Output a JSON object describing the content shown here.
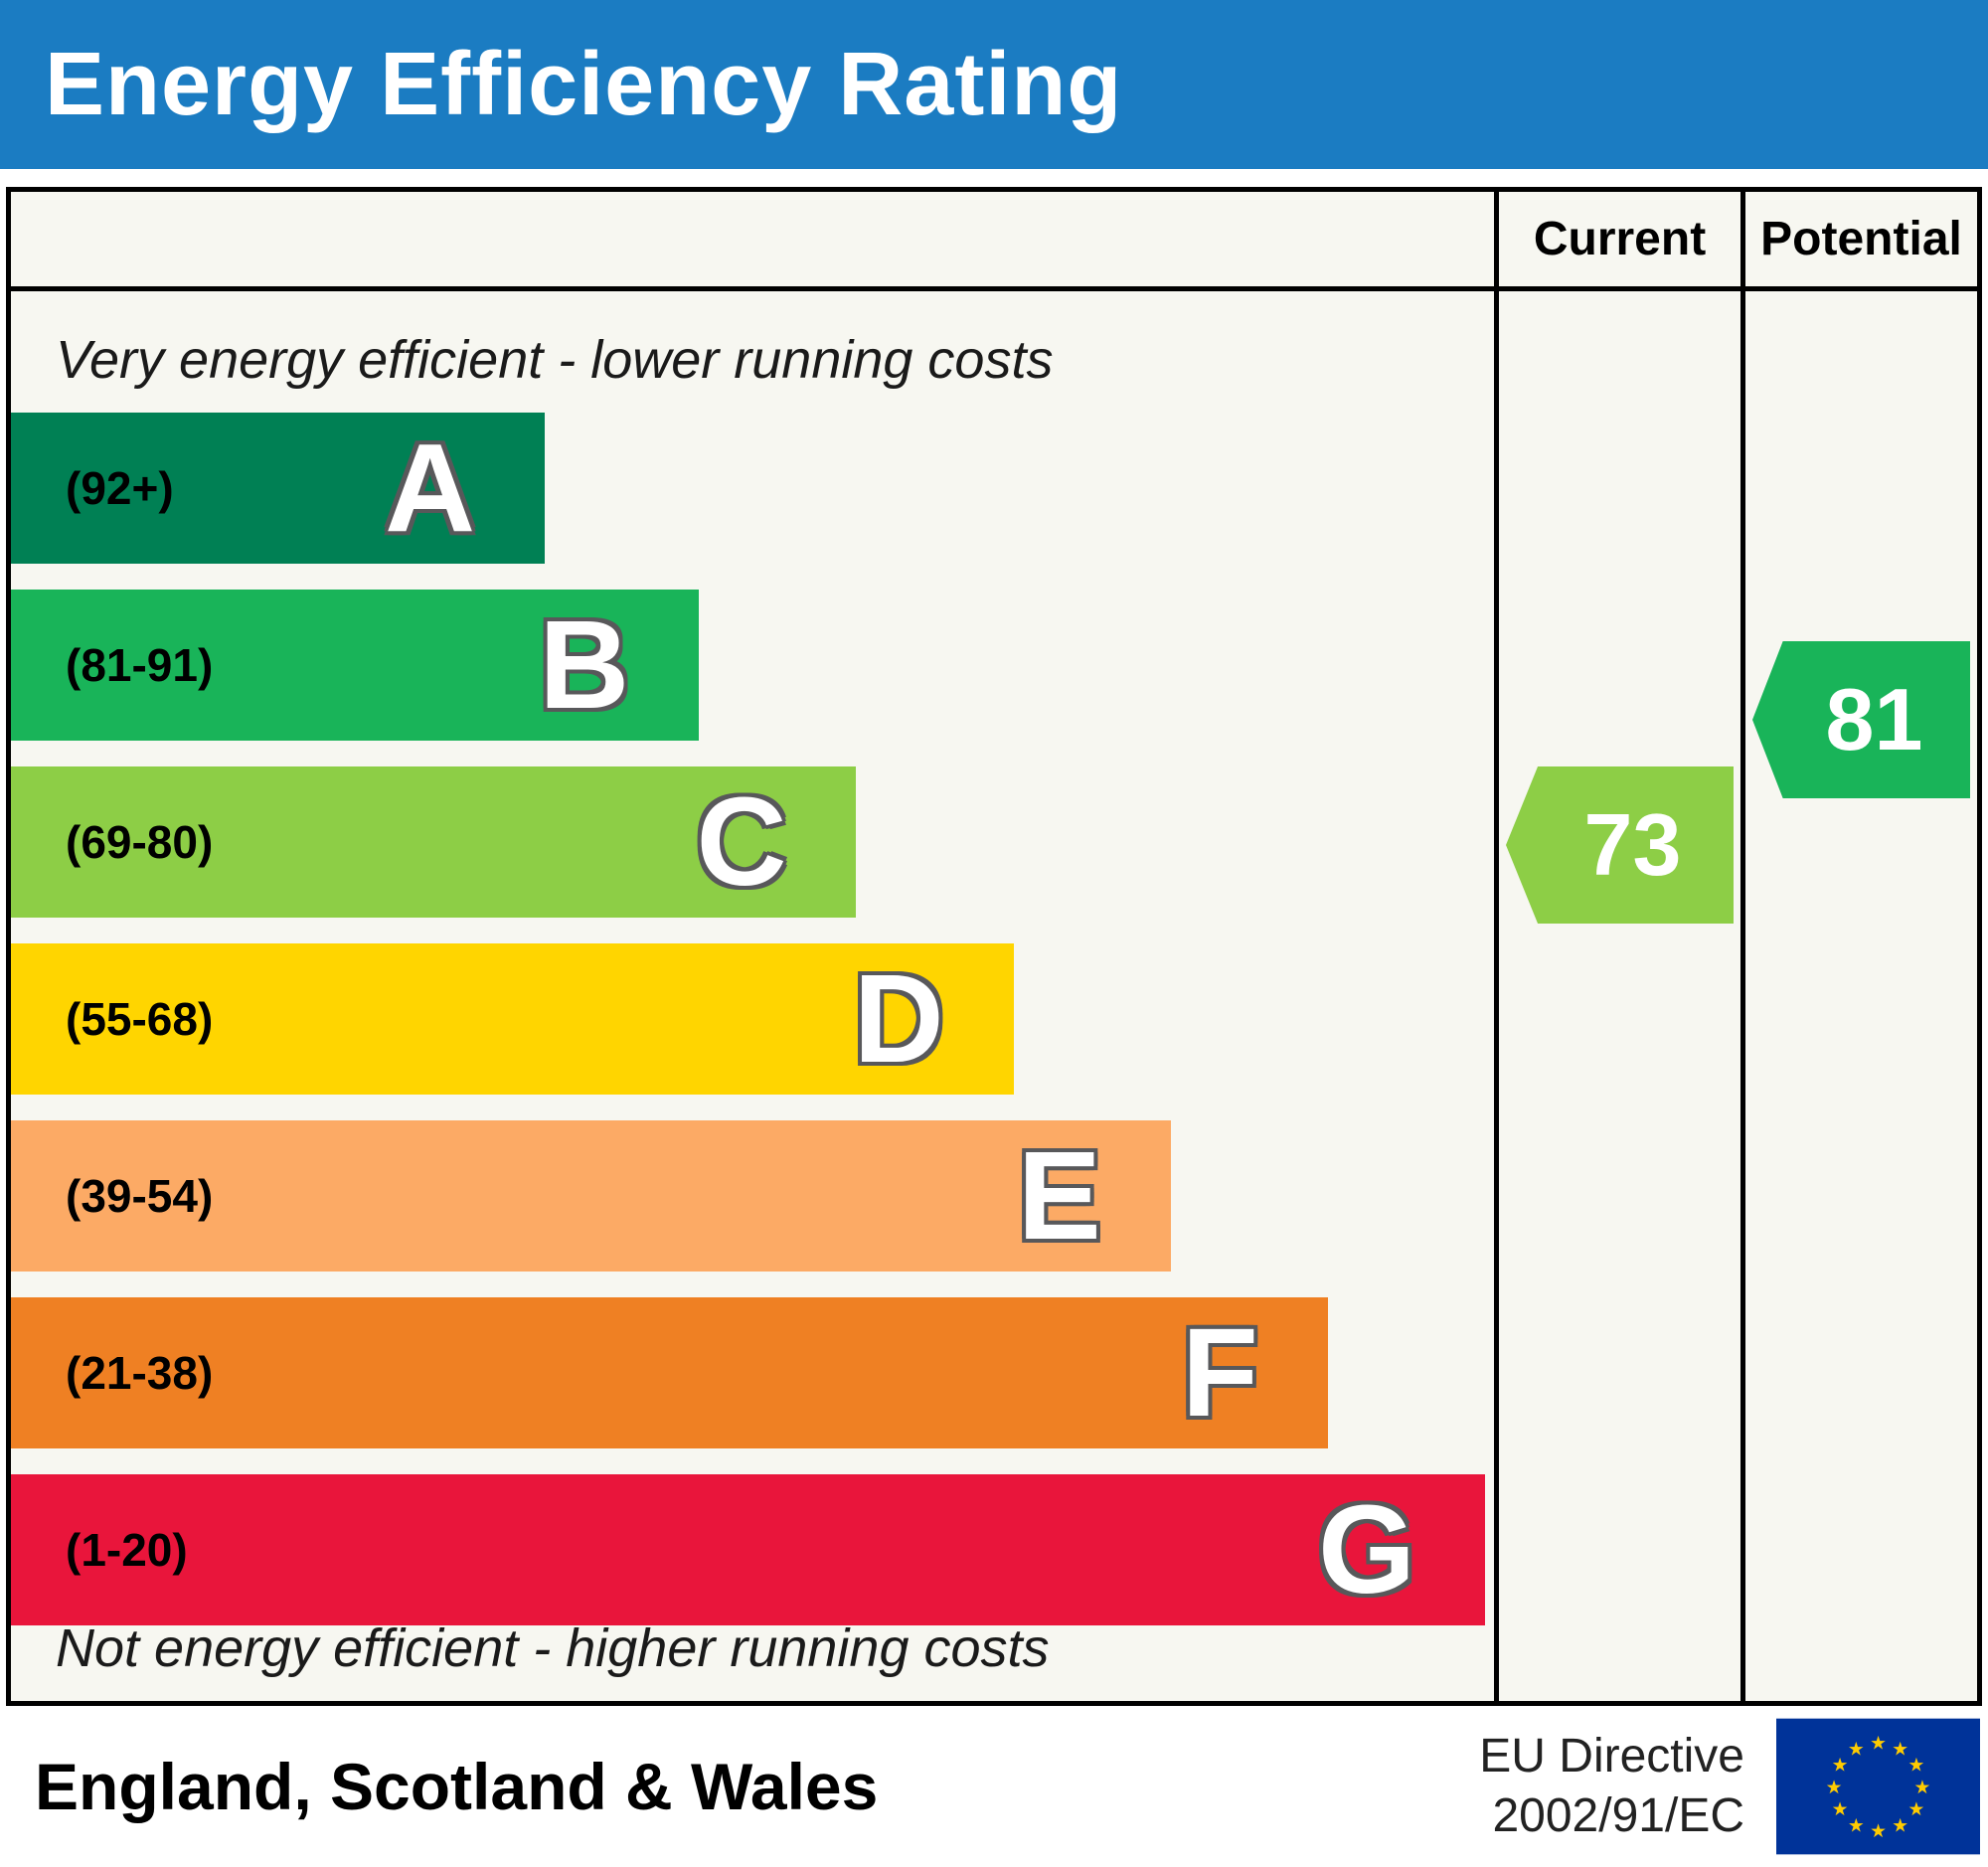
{
  "header": {
    "title": "Energy Efficiency Rating",
    "bar_color": "#1b7cc2"
  },
  "columns": {
    "current": "Current",
    "potential": "Potential"
  },
  "notes": {
    "top": "Very energy efficient - lower running costs",
    "bottom": "Not energy efficient - higher running costs"
  },
  "chart_data": {
    "type": "bar",
    "title": "Energy Efficiency Rating",
    "bands": [
      {
        "letter": "A",
        "range": "(92+)",
        "min": 92,
        "max": 100,
        "color": "#008054",
        "width_pct": 36.0
      },
      {
        "letter": "B",
        "range": "(81-91)",
        "min": 81,
        "max": 91,
        "color": "#19b459",
        "width_pct": 46.4
      },
      {
        "letter": "C",
        "range": "(69-80)",
        "min": 69,
        "max": 80,
        "color": "#8dce46",
        "width_pct": 57.0
      },
      {
        "letter": "D",
        "range": "(55-68)",
        "min": 55,
        "max": 68,
        "color": "#ffd500",
        "width_pct": 67.6
      },
      {
        "letter": "E",
        "range": "(39-54)",
        "min": 39,
        "max": 54,
        "color": "#fcaa65",
        "width_pct": 78.2
      },
      {
        "letter": "F",
        "range": "(21-38)",
        "min": 21,
        "max": 38,
        "color": "#ef8023",
        "width_pct": 88.8
      },
      {
        "letter": "G",
        "range": "(1-20)",
        "min": 1,
        "max": 20,
        "color": "#e9153b",
        "width_pct": 99.4
      }
    ],
    "current": {
      "value": 73,
      "band": "C",
      "color": "#8dce46"
    },
    "potential": {
      "value": 81,
      "band": "B",
      "color": "#19b459"
    }
  },
  "footer": {
    "region": "England, Scotland & Wales",
    "directive_line1": "EU Directive",
    "directive_line2": "2002/91/EC"
  },
  "icons": {
    "eu_flag": "eu-flag-icon",
    "star_glyph": "★",
    "flag_blue": "#003399",
    "star_yellow": "#ffcc00"
  }
}
